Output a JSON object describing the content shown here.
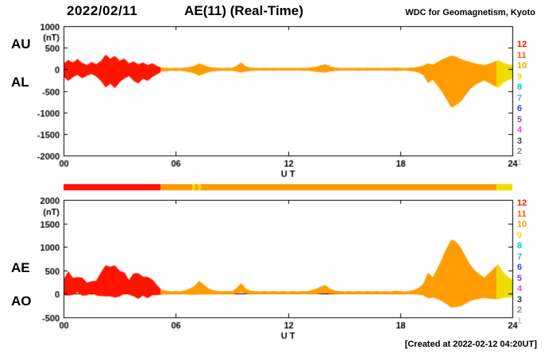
{
  "header": {
    "date": "2022/02/11",
    "title": "AE(11) (Real-Time)",
    "source": "WDC for Geomagnetism, Kyoto"
  },
  "footer": {
    "created": "[Created at 2022-02-12 04:20UT]"
  },
  "legend": {
    "items": [
      {
        "label": "12",
        "color": "#ff1400"
      },
      {
        "label": "11",
        "color": "#ff5a00"
      },
      {
        "label": "10",
        "color": "#ff9c00"
      },
      {
        "label": "9",
        "color": "#f0dc00"
      },
      {
        "label": "8",
        "color": "#00c8c8"
      },
      {
        "label": "7",
        "color": "#50a0ff"
      },
      {
        "label": "6",
        "color": "#2840ff"
      },
      {
        "label": "5",
        "color": "#8c3cc8"
      },
      {
        "label": "4",
        "color": "#ff3cc8"
      },
      {
        "label": "3",
        "color": "#3c3c3c"
      },
      {
        "label": "2",
        "color": "#878787"
      },
      {
        "label": "1",
        "color": "#c8c8c8"
      }
    ]
  },
  "station_bar": {
    "segments": [
      {
        "start": 0,
        "end": 5.2,
        "color": "#ff1400"
      },
      {
        "start": 5.2,
        "end": 6.9,
        "color": "#ff9c00"
      },
      {
        "start": 6.9,
        "end": 7.05,
        "color": "#f0dc00"
      },
      {
        "start": 7.05,
        "end": 7.2,
        "color": "#ff9c00"
      },
      {
        "start": 7.2,
        "end": 7.35,
        "color": "#f0dc00"
      },
      {
        "start": 7.35,
        "end": 23.15,
        "color": "#ff9c00"
      },
      {
        "start": 23.15,
        "end": 24,
        "color": "#f0dc00"
      }
    ]
  },
  "chart_data": [
    {
      "type": "area",
      "title": "AE(11) (Real-Time)",
      "left_labels": [
        "AU",
        "AL"
      ],
      "ylabel": "(nT)",
      "xlabel": "U T",
      "ylim": [
        -2000,
        1000
      ],
      "xlim": [
        0,
        24
      ],
      "yticks": [
        1000,
        500,
        0,
        -500,
        -1000,
        -1500,
        -2000
      ],
      "xticks": [
        "00",
        "06",
        "12",
        "18",
        "24"
      ],
      "xtick_values": [
        0,
        6,
        12,
        18,
        24
      ],
      "x_step": 0.25,
      "color_segments": [
        {
          "start": 0,
          "end": 5.2,
          "color": "#ff1400"
        },
        {
          "start": 5.2,
          "end": 23.15,
          "color": "#ff9c00"
        },
        {
          "start": 23.15,
          "end": 24,
          "color": "#f0dc00"
        }
      ],
      "series": [
        {
          "name": "AU",
          "values": [
            120,
            210,
            150,
            230,
            140,
            90,
            160,
            110,
            180,
            330,
            240,
            300,
            190,
            240,
            130,
            170,
            110,
            150,
            90,
            130,
            70,
            30,
            25,
            20,
            25,
            20,
            30,
            45,
            70,
            130,
            90,
            50,
            30,
            25,
            20,
            25,
            20,
            70,
            150,
            60,
            30,
            25,
            20,
            25,
            20,
            25,
            20,
            25,
            20,
            25,
            20,
            25,
            20,
            35,
            50,
            80,
            110,
            60,
            35,
            25,
            20,
            25,
            20,
            25,
            20,
            25,
            20,
            25,
            20,
            25,
            20,
            30,
            25,
            20,
            25,
            35,
            50,
            80,
            130,
            100,
            160,
            220,
            270,
            310,
            280,
            230,
            190,
            160,
            130,
            110,
            90,
            120,
            160,
            200,
            150,
            110,
            90
          ]
        },
        {
          "name": "AL",
          "values": [
            -160,
            -260,
            -180,
            -120,
            -200,
            -140,
            -100,
            -160,
            -260,
            -410,
            -330,
            -430,
            -290,
            -210,
            -150,
            -260,
            -320,
            -210,
            -260,
            -170,
            -110,
            -45,
            -35,
            -25,
            -30,
            -25,
            -40,
            -60,
            -90,
            -140,
            -100,
            -60,
            -40,
            -30,
            -25,
            -30,
            -25,
            -45,
            -70,
            -45,
            -30,
            -25,
            -20,
            -25,
            -20,
            -25,
            -20,
            -25,
            -20,
            -25,
            -20,
            -25,
            -25,
            -35,
            -50,
            -60,
            -70,
            -45,
            -30,
            -25,
            -20,
            -25,
            -20,
            -25,
            -20,
            -25,
            -20,
            -25,
            -20,
            -25,
            -20,
            -30,
            -25,
            -20,
            -30,
            -45,
            -70,
            -130,
            -310,
            -240,
            -370,
            -520,
            -700,
            -880,
            -820,
            -740,
            -590,
            -450,
            -360,
            -300,
            -250,
            -310,
            -370,
            -420,
            -310,
            -250,
            -200
          ]
        }
      ]
    },
    {
      "type": "area",
      "title": "AE(11) (Real-Time)",
      "left_labels": [
        "AE",
        "AO"
      ],
      "ylabel": "(nT)",
      "xlabel": "U T",
      "ylim": [
        -500,
        2000
      ],
      "xlim": [
        0,
        24
      ],
      "yticks": [
        2000,
        1500,
        1000,
        500,
        0,
        -500
      ],
      "xticks": [
        "00",
        "06",
        "12",
        "18",
        "24"
      ],
      "xtick_values": [
        0,
        6,
        12,
        18,
        24
      ],
      "x_step": 0.25,
      "color_segments": [
        {
          "start": 0,
          "end": 5.2,
          "color": "#ff1400"
        },
        {
          "start": 5.2,
          "end": 23.15,
          "color": "#ff9c00"
        },
        {
          "start": 23.15,
          "end": 24,
          "color": "#f0dc00"
        }
      ],
      "series": [
        {
          "name": "AE",
          "values": [
            280,
            470,
            330,
            350,
            340,
            230,
            260,
            270,
            440,
            600,
            570,
            600,
            480,
            450,
            280,
            430,
            430,
            360,
            350,
            300,
            180,
            75,
            60,
            45,
            55,
            45,
            70,
            105,
            160,
            270,
            190,
            110,
            70,
            55,
            45,
            55,
            45,
            115,
            220,
            105,
            60,
            50,
            40,
            50,
            40,
            50,
            40,
            50,
            40,
            50,
            40,
            50,
            45,
            70,
            100,
            140,
            180,
            105,
            65,
            50,
            40,
            50,
            40,
            50,
            40,
            50,
            40,
            50,
            40,
            50,
            40,
            60,
            50,
            40,
            55,
            80,
            120,
            210,
            440,
            340,
            530,
            740,
            970,
            1150,
            1100,
            970,
            780,
            610,
            490,
            410,
            340,
            430,
            530,
            620,
            460,
            360,
            290
          ]
        },
        {
          "name": "AO",
          "values": [
            -20,
            -30,
            -15,
            40,
            -30,
            -25,
            20,
            -25,
            -40,
            -45,
            -45,
            -70,
            -50,
            10,
            -10,
            -45,
            -100,
            -30,
            -85,
            -20,
            -20,
            -8,
            -5,
            -3,
            -3,
            -3,
            -5,
            -8,
            -10,
            -5,
            -5,
            -5,
            -5,
            -3,
            -3,
            -3,
            -3,
            10,
            40,
            8,
            0,
            0,
            0,
            0,
            0,
            0,
            0,
            0,
            0,
            0,
            0,
            0,
            -3,
            0,
            0,
            10,
            20,
            8,
            3,
            0,
            0,
            0,
            0,
            0,
            0,
            0,
            0,
            0,
            0,
            0,
            0,
            0,
            0,
            0,
            -3,
            -5,
            -10,
            -25,
            -90,
            -70,
            -105,
            -150,
            -215,
            -285,
            -270,
            -255,
            -200,
            -145,
            -115,
            -95,
            -80,
            -95,
            -105,
            -110,
            -80,
            -70,
            -55
          ]
        }
      ]
    }
  ]
}
